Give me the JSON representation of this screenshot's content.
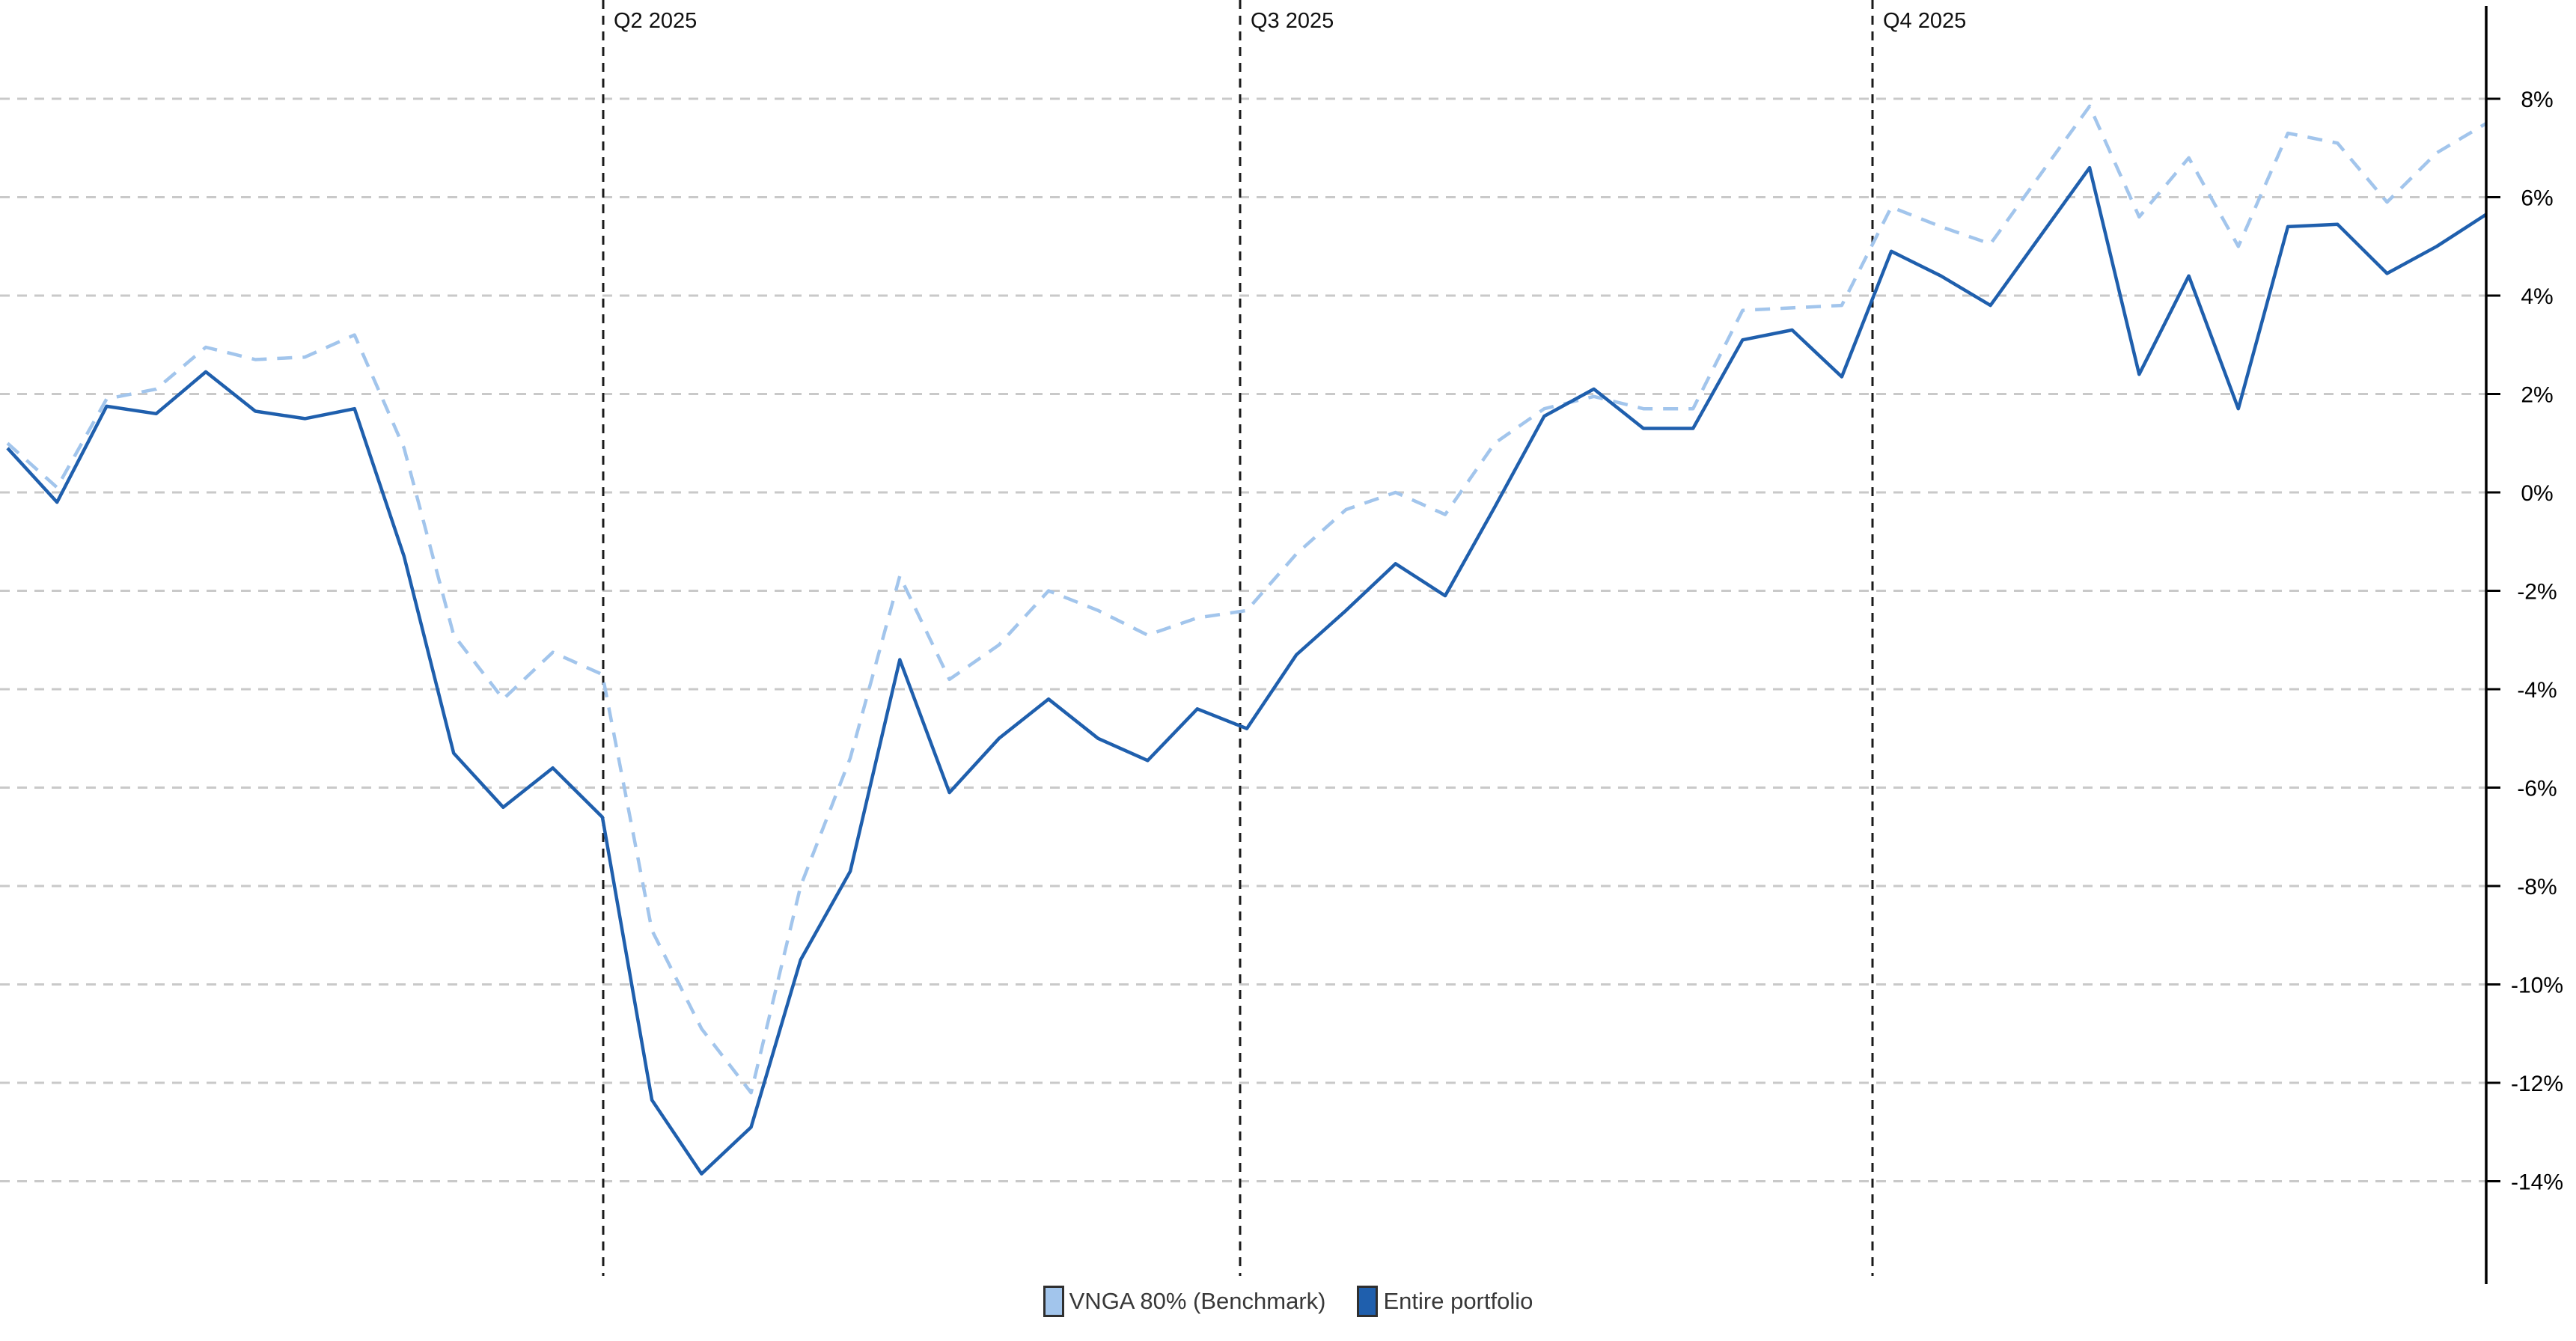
{
  "chart_data": {
    "type": "line",
    "title": "",
    "xlabel": "",
    "ylabel": "",
    "grid": true,
    "legend_position": "bottom-center",
    "y_axis": {
      "side": "right",
      "min": -14,
      "max": 8,
      "step": 2,
      "tick_suffix": "%",
      "tick_labels": [
        "8%",
        "6%",
        "4%",
        "2%",
        "0%",
        "-2%",
        "-4%",
        "-6%",
        "-8%",
        "-10%",
        "-12%",
        "-14%"
      ]
    },
    "x_markers": [
      {
        "label": "Q2 2025",
        "x": 806
      },
      {
        "label": "Q3 2025",
        "x": 1657
      },
      {
        "label": "Q4 2025",
        "x": 2502
      }
    ],
    "series": [
      {
        "name": "VNGA 80% (Benchmark)",
        "color": "#a2c5ec",
        "style": "dashed",
        "values": [
          1.0,
          0.1,
          1.9,
          2.1,
          2.95,
          2.7,
          2.75,
          3.2,
          0.9,
          -2.9,
          -4.2,
          -3.25,
          -3.7,
          -8.9,
          -10.9,
          -12.2,
          -8.0,
          -5.4,
          -1.7,
          -3.8,
          -3.1,
          -2.0,
          -2.4,
          -2.9,
          -2.55,
          -2.4,
          -1.25,
          -0.35,
          0.0,
          -0.45,
          1.0,
          1.7,
          1.95,
          1.7,
          1.7,
          3.7,
          3.75,
          3.8,
          5.8,
          5.4,
          5.05,
          6.45,
          7.85,
          5.6,
          6.8,
          5.0,
          7.3,
          7.1,
          5.9,
          6.9,
          7.5
        ]
      },
      {
        "name": "Entire portfolio",
        "color": "#1f5fad",
        "style": "solid",
        "values": [
          0.9,
          -0.2,
          1.75,
          1.6,
          2.45,
          1.65,
          1.5,
          1.7,
          -1.3,
          -5.3,
          -6.4,
          -5.6,
          -6.6,
          -12.35,
          -13.85,
          -12.9,
          -9.5,
          -7.7,
          -3.4,
          -6.1,
          -5.0,
          -4.2,
          -5.0,
          -5.45,
          -4.4,
          -4.8,
          -3.3,
          -2.4,
          -1.45,
          -2.1,
          -0.3,
          1.55,
          2.1,
          1.3,
          1.3,
          3.1,
          3.3,
          2.35,
          4.9,
          4.4,
          3.8,
          5.2,
          6.6,
          2.4,
          4.4,
          1.7,
          5.4,
          5.45,
          4.45,
          5.0,
          5.65
        ]
      }
    ]
  },
  "legend": {
    "items": [
      {
        "label": "VNGA 80% (Benchmark)",
        "color": "#a2c5ec"
      },
      {
        "label": "Entire portfolio",
        "color": "#1f5fad"
      }
    ]
  },
  "colors": {
    "benchmark": "#a2c5ec",
    "portfolio": "#1f5fad",
    "gridline": "#c9c9c9",
    "marker_line": "#1a1a1a",
    "axis": "#000000"
  }
}
